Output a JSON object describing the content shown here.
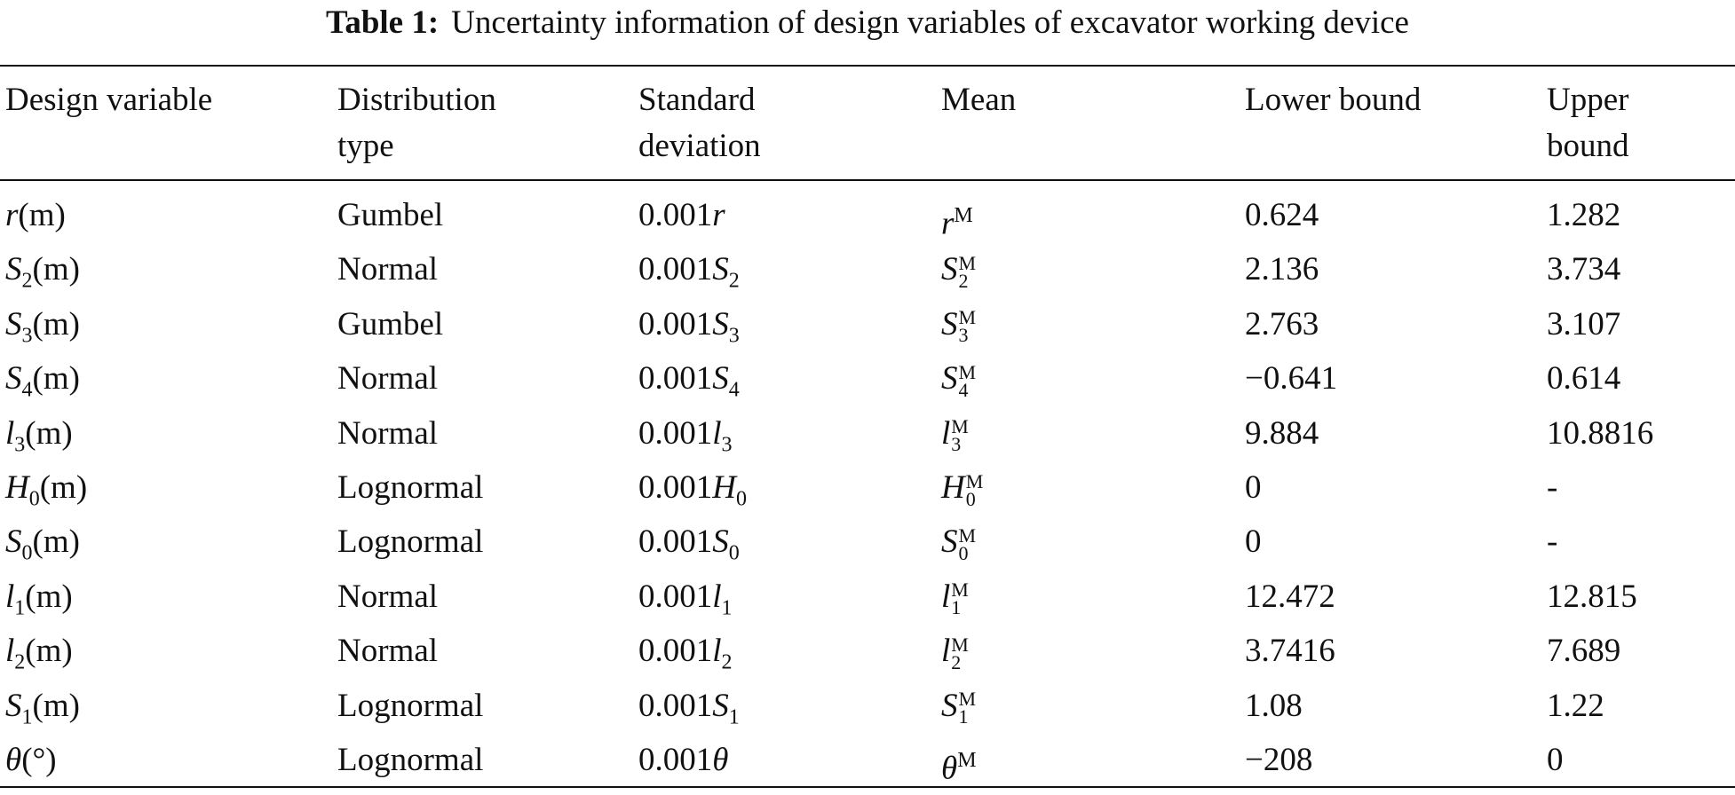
{
  "table": {
    "label": "Table 1:",
    "caption": "Uncertainty information of design variables of excavator working device",
    "header": [
      [
        "Design variable"
      ],
      [
        "Distribution",
        "type"
      ],
      [
        "Standard",
        "deviation"
      ],
      [
        "Mean"
      ],
      [
        "Lower bound"
      ],
      [
        "Upper",
        "bound"
      ]
    ],
    "rows": [
      {
        "variable": {
          "symbol": "r",
          "unit": "(m)"
        },
        "distribution": "Gumbel",
        "std": {
          "coefficient": "0.001",
          "symbol": "r"
        },
        "mean": {
          "symbol": "r",
          "superscript": "M"
        },
        "lower": "0.624",
        "upper": "1.282"
      },
      {
        "variable": {
          "symbol": "S",
          "subscript": "2",
          "unit": "(m)"
        },
        "distribution": "Normal",
        "std": {
          "coefficient": "0.001",
          "symbol": "S",
          "subscript": "2"
        },
        "mean": {
          "symbol": "S",
          "subscript": "2",
          "superscript": "M"
        },
        "lower": "2.136",
        "upper": "3.734"
      },
      {
        "variable": {
          "symbol": "S",
          "subscript": "3",
          "unit": "(m)"
        },
        "distribution": "Gumbel",
        "std": {
          "coefficient": "0.001",
          "symbol": "S",
          "subscript": "3"
        },
        "mean": {
          "symbol": "S",
          "subscript": "3",
          "superscript": "M"
        },
        "lower": "2.763",
        "upper": "3.107"
      },
      {
        "variable": {
          "symbol": "S",
          "subscript": "4",
          "unit": "(m)"
        },
        "distribution": "Normal",
        "std": {
          "coefficient": "0.001",
          "symbol": "S",
          "subscript": "4"
        },
        "mean": {
          "symbol": "S",
          "subscript": "4",
          "superscript": "M"
        },
        "lower": "−0.641",
        "upper": "0.614"
      },
      {
        "variable": {
          "symbol": "l",
          "subscript": "3",
          "unit": "(m)"
        },
        "distribution": "Normal",
        "std": {
          "coefficient": "0.001",
          "symbol": "l",
          "subscript": "3"
        },
        "mean": {
          "symbol": "l",
          "subscript": "3",
          "superscript": "M"
        },
        "lower": "9.884",
        "upper": "10.8816"
      },
      {
        "variable": {
          "symbol": "H",
          "subscript": "0",
          "unit": "(m)"
        },
        "distribution": "Lognormal",
        "std": {
          "coefficient": "0.001",
          "symbol": "H",
          "subscript": "0"
        },
        "mean": {
          "symbol": "H",
          "subscript": "0",
          "superscript": "M"
        },
        "lower": "0",
        "upper": "-"
      },
      {
        "variable": {
          "symbol": "S",
          "subscript": "0",
          "unit": "(m)"
        },
        "distribution": "Lognormal",
        "std": {
          "coefficient": "0.001",
          "symbol": "S",
          "subscript": "0"
        },
        "mean": {
          "symbol": "S",
          "subscript": "0",
          "superscript": "M"
        },
        "lower": "0",
        "upper": "-"
      },
      {
        "variable": {
          "symbol": "l",
          "subscript": "1",
          "unit": "(m)"
        },
        "distribution": "Normal",
        "std": {
          "coefficient": "0.001",
          "symbol": "l",
          "subscript": "1"
        },
        "mean": {
          "symbol": "l",
          "subscript": "1",
          "superscript": "M"
        },
        "lower": "12.472",
        "upper": "12.815"
      },
      {
        "variable": {
          "symbol": "l",
          "subscript": "2",
          "unit": "(m)"
        },
        "distribution": "Normal",
        "std": {
          "coefficient": "0.001",
          "symbol": "l",
          "subscript": "2"
        },
        "mean": {
          "symbol": "l",
          "subscript": "2",
          "superscript": "M"
        },
        "lower": "3.7416",
        "upper": "7.689"
      },
      {
        "variable": {
          "symbol": "S",
          "subscript": "1",
          "unit": "(m)"
        },
        "distribution": "Lognormal",
        "std": {
          "coefficient": "0.001",
          "symbol": "S",
          "subscript": "1"
        },
        "mean": {
          "symbol": "S",
          "subscript": "1",
          "superscript": "M"
        },
        "lower": "1.08",
        "upper": "1.22"
      },
      {
        "variable": {
          "symbol": "θ",
          "unit": "(°)"
        },
        "distribution": "Lognormal",
        "std": {
          "coefficient": "0.001",
          "symbol": "θ"
        },
        "mean": {
          "symbol": "θ",
          "superscript": "M"
        },
        "lower": "−208",
        "upper": "0"
      }
    ]
  }
}
